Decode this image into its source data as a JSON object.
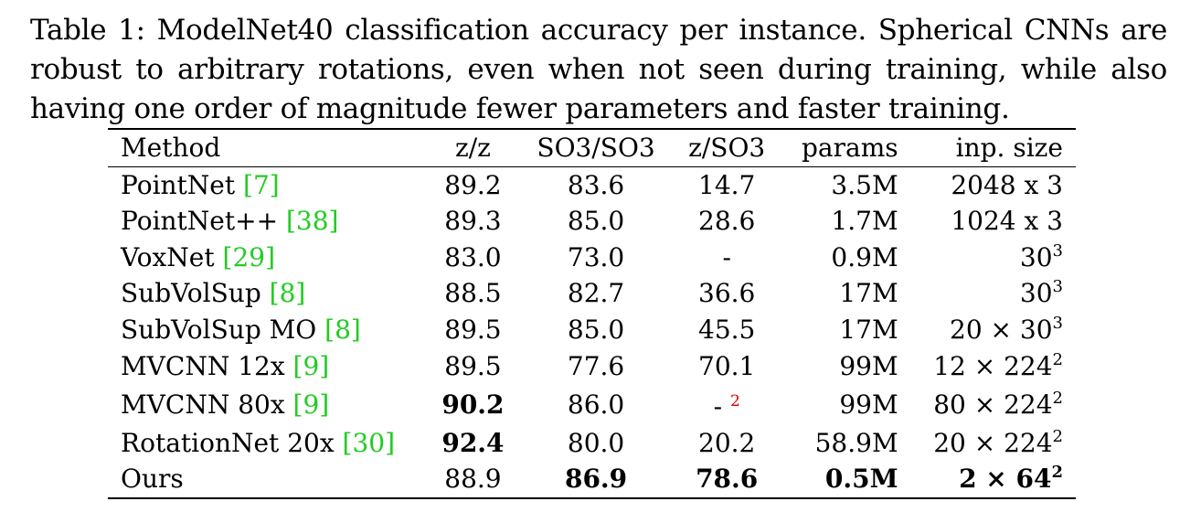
{
  "caption": "Table 1: ModelNet40 classification accuracy per instance. Spherical CNNs are robust to arbitrary rotations, even when not seen during training, while also having one order of magnitude fewer parameters and faster training.",
  "headers": [
    "Method",
    "z/z",
    "SO3/SO3",
    "z/SO3",
    "params",
    "inp. size"
  ],
  "rows": [
    {
      "method": "PointNet ",
      "cite": "[7]",
      "zz": "89.2",
      "so3so3": "83.6",
      "zso3": "14.7",
      "params": "3.5M",
      "inp_base": "2048 x 3",
      "inp_exp": ""
    },
    {
      "method": "PointNet++ ",
      "cite": "[38]",
      "zz": "89.3",
      "so3so3": "85.0",
      "zso3": "28.6",
      "params": "1.7M",
      "inp_base": "1024 x 3",
      "inp_exp": ""
    },
    {
      "method": "VoxNet ",
      "cite": "[29]",
      "zz": "83.0",
      "so3so3": "73.0",
      "zso3": "-",
      "params": "0.9M",
      "inp_base": "30",
      "inp_exp": "3"
    },
    {
      "method": "SubVolSup ",
      "cite": "[8]",
      "zz": "88.5",
      "so3so3": "82.7",
      "zso3": "36.6",
      "params": "17M",
      "inp_base": "30",
      "inp_exp": "3"
    },
    {
      "method": "SubVolSup MO ",
      "cite": "[8]",
      "zz": "89.5",
      "so3so3": "85.0",
      "zso3": "45.5",
      "params": "17M",
      "inp_base": "20 × 30",
      "inp_exp": "3"
    },
    {
      "method": "MVCNN 12x ",
      "cite": "[9]",
      "zz": "89.5",
      "so3so3": "77.6",
      "zso3": "70.1",
      "params": "99M",
      "inp_base": "12 × 224",
      "inp_exp": "2"
    },
    {
      "method": "MVCNN 80x ",
      "cite": "[9]",
      "zz": "90.2",
      "so3so3": "86.0",
      "zso3": "-",
      "zso3_fn": "2",
      "params": "99M",
      "inp_base": "80 × 224",
      "inp_exp": "2",
      "bold": [
        "zz"
      ]
    },
    {
      "method": "RotationNet 20x ",
      "cite": "[30]",
      "zz": "92.4",
      "so3so3": "80.0",
      "zso3": "20.2",
      "params": "58.9M",
      "inp_base": "20 × 224",
      "inp_exp": "2",
      "bold": [
        "zz"
      ]
    },
    {
      "method": "Ours",
      "cite": "",
      "zz": "88.9",
      "so3so3": "86.9",
      "zso3": "78.6",
      "params": "0.5M",
      "inp_base": "2 × 64",
      "inp_exp": "2",
      "bold": [
        "so3so3",
        "zso3",
        "params",
        "inp"
      ]
    }
  ]
}
